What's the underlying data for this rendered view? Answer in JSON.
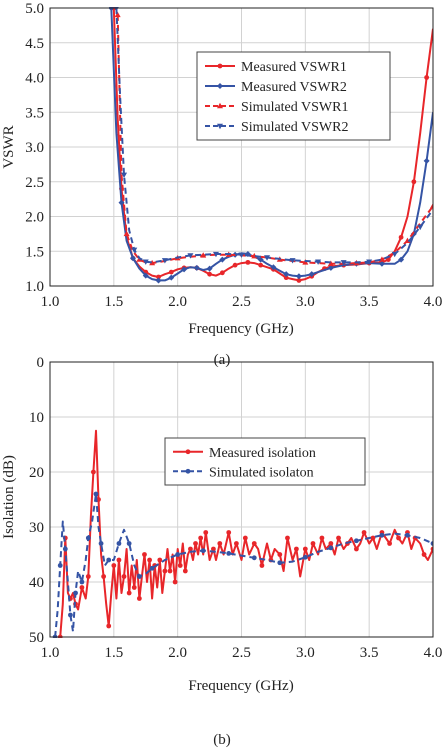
{
  "chart_data": [
    {
      "type": "line",
      "caption": "(a)",
      "xlabel": "Frequency (GHz)",
      "ylabel": "VSWR",
      "xlim": [
        1.0,
        4.0
      ],
      "ylim": [
        1.0,
        5.0
      ],
      "xticks": [
        "1.0",
        "1.5",
        "2.0",
        "2.5",
        "3.0",
        "3.5",
        "4.0"
      ],
      "yticks": [
        "1.0",
        "1.5",
        "2.0",
        "2.5",
        "3.0",
        "3.5",
        "4.0",
        "4.5",
        "5.0"
      ],
      "grid": true,
      "legend_position": "top-right",
      "series": [
        {
          "name": "Measured VSWR1",
          "color": "#e8262a",
          "dash": "solid",
          "marker": "circle",
          "x": [
            1.5,
            1.53,
            1.56,
            1.6,
            1.65,
            1.7,
            1.75,
            1.8,
            1.85,
            1.9,
            1.95,
            2.0,
            2.05,
            2.1,
            2.15,
            2.2,
            2.25,
            2.3,
            2.35,
            2.4,
            2.45,
            2.5,
            2.55,
            2.6,
            2.65,
            2.7,
            2.75,
            2.8,
            2.85,
            2.9,
            2.95,
            3.0,
            3.05,
            3.1,
            3.15,
            3.2,
            3.3,
            3.4,
            3.5,
            3.6,
            3.65,
            3.7,
            3.75,
            3.8,
            3.85,
            3.9,
            3.95,
            4.0
          ],
          "y": [
            5.0,
            3.4,
            2.4,
            1.7,
            1.4,
            1.28,
            1.2,
            1.15,
            1.13,
            1.17,
            1.2,
            1.24,
            1.26,
            1.27,
            1.26,
            1.22,
            1.17,
            1.15,
            1.19,
            1.25,
            1.3,
            1.33,
            1.34,
            1.33,
            1.3,
            1.27,
            1.24,
            1.18,
            1.12,
            1.1,
            1.08,
            1.1,
            1.14,
            1.2,
            1.25,
            1.28,
            1.3,
            1.31,
            1.33,
            1.34,
            1.38,
            1.5,
            1.7,
            2.0,
            2.5,
            3.2,
            4.0,
            4.7
          ]
        },
        {
          "name": "Measured VSWR2",
          "color": "#3554a5",
          "dash": "solid",
          "marker": "diamond",
          "x": [
            1.48,
            1.52,
            1.56,
            1.6,
            1.65,
            1.7,
            1.75,
            1.8,
            1.85,
            1.9,
            1.95,
            2.0,
            2.05,
            2.1,
            2.15,
            2.2,
            2.25,
            2.3,
            2.35,
            2.4,
            2.45,
            2.5,
            2.55,
            2.6,
            2.65,
            2.7,
            2.75,
            2.8,
            2.85,
            2.9,
            2.95,
            3.0,
            3.05,
            3.1,
            3.2,
            3.3,
            3.4,
            3.5,
            3.6,
            3.7,
            3.75,
            3.8,
            3.85,
            3.9,
            3.95,
            4.0
          ],
          "y": [
            5.0,
            3.2,
            2.2,
            1.65,
            1.4,
            1.25,
            1.15,
            1.1,
            1.08,
            1.08,
            1.12,
            1.18,
            1.24,
            1.27,
            1.26,
            1.23,
            1.25,
            1.32,
            1.38,
            1.42,
            1.45,
            1.47,
            1.46,
            1.42,
            1.38,
            1.32,
            1.27,
            1.22,
            1.17,
            1.15,
            1.14,
            1.15,
            1.17,
            1.2,
            1.26,
            1.3,
            1.32,
            1.33,
            1.32,
            1.32,
            1.38,
            1.5,
            1.75,
            2.2,
            2.8,
            3.5
          ]
        },
        {
          "name": "Simulated VSWR1",
          "color": "#e8262a",
          "dash": "dashed",
          "marker": "triangle-up",
          "x": [
            1.53,
            1.56,
            1.6,
            1.65,
            1.7,
            1.75,
            1.8,
            1.9,
            2.0,
            2.1,
            2.2,
            2.3,
            2.4,
            2.5,
            2.6,
            2.7,
            2.8,
            2.9,
            3.0,
            3.1,
            3.2,
            3.3,
            3.4,
            3.5,
            3.6,
            3.7,
            3.8,
            3.9,
            4.0
          ],
          "y": [
            4.9,
            2.6,
            1.75,
            1.5,
            1.38,
            1.34,
            1.33,
            1.36,
            1.4,
            1.42,
            1.44,
            1.45,
            1.45,
            1.44,
            1.43,
            1.41,
            1.38,
            1.36,
            1.34,
            1.33,
            1.32,
            1.32,
            1.33,
            1.34,
            1.38,
            1.48,
            1.65,
            1.9,
            2.15
          ]
        },
        {
          "name": "Simulated VSWR2",
          "color": "#3554a5",
          "dash": "dashed",
          "marker": "triangle-down",
          "x": [
            1.52,
            1.55,
            1.58,
            1.62,
            1.66,
            1.7,
            1.75,
            1.8,
            1.9,
            2.0,
            2.1,
            2.2,
            2.3,
            2.4,
            2.5,
            2.6,
            2.7,
            2.8,
            2.9,
            3.0,
            3.1,
            3.2,
            3.3,
            3.4,
            3.5,
            3.6,
            3.7,
            3.8,
            3.9,
            4.0
          ],
          "y": [
            5.0,
            3.7,
            2.6,
            1.8,
            1.52,
            1.4,
            1.35,
            1.34,
            1.37,
            1.41,
            1.44,
            1.45,
            1.46,
            1.46,
            1.45,
            1.43,
            1.41,
            1.39,
            1.37,
            1.36,
            1.35,
            1.34,
            1.34,
            1.34,
            1.35,
            1.38,
            1.46,
            1.62,
            1.85,
            2.1
          ]
        }
      ]
    },
    {
      "type": "line",
      "caption": "(b)",
      "xlabel": "Frequency (GHz)",
      "ylabel": "Isolation (dB)",
      "xlim": [
        1.0,
        4.0
      ],
      "ylim": [
        0,
        50
      ],
      "y_inverted": true,
      "xticks": [
        "1.0",
        "1.5",
        "2.0",
        "2.5",
        "3.0",
        "3.5",
        "4.0"
      ],
      "yticks": [
        "0",
        "10",
        "20",
        "30",
        "40",
        "50"
      ],
      "grid": true,
      "legend_position": "top-right",
      "series": [
        {
          "name": "Measured isolation",
          "color": "#e8262a",
          "dash": "solid",
          "marker": "circle",
          "x": [
            1.08,
            1.1,
            1.12,
            1.14,
            1.16,
            1.18,
            1.2,
            1.22,
            1.25,
            1.28,
            1.3,
            1.32,
            1.34,
            1.36,
            1.38,
            1.4,
            1.42,
            1.44,
            1.46,
            1.48,
            1.5,
            1.52,
            1.54,
            1.56,
            1.58,
            1.6,
            1.62,
            1.64,
            1.66,
            1.68,
            1.7,
            1.72,
            1.74,
            1.76,
            1.78,
            1.8,
            1.82,
            1.84,
            1.86,
            1.88,
            1.9,
            1.92,
            1.94,
            1.96,
            1.98,
            2.0,
            2.02,
            2.04,
            2.06,
            2.08,
            2.1,
            2.12,
            2.14,
            2.16,
            2.18,
            2.2,
            2.22,
            2.25,
            2.28,
            2.3,
            2.33,
            2.36,
            2.4,
            2.43,
            2.46,
            2.5,
            2.53,
            2.56,
            2.6,
            2.63,
            2.66,
            2.7,
            2.73,
            2.76,
            2.8,
            2.83,
            2.86,
            2.9,
            2.93,
            2.96,
            3.0,
            3.03,
            3.06,
            3.1,
            3.13,
            3.16,
            3.2,
            3.23,
            3.26,
            3.3,
            3.33,
            3.36,
            3.4,
            3.43,
            3.46,
            3.5,
            3.53,
            3.56,
            3.6,
            3.63,
            3.66,
            3.7,
            3.73,
            3.76,
            3.8,
            3.83,
            3.86,
            3.9,
            3.93,
            3.96,
            4.0
          ],
          "y": [
            50,
            44,
            32,
            42,
            43,
            42,
            44,
            45,
            41,
            43,
            39,
            28,
            20,
            12.5,
            25,
            35,
            39,
            44,
            48,
            42,
            37,
            43,
            36,
            42,
            39,
            34,
            42,
            37,
            41,
            36,
            43,
            39,
            35,
            40,
            36,
            43,
            37,
            41,
            36,
            42,
            38,
            34,
            38,
            35,
            40,
            34,
            37,
            33,
            38,
            35,
            34,
            36,
            33,
            35,
            32,
            35,
            31,
            36,
            34,
            36,
            33,
            35,
            31,
            35,
            33,
            36,
            32,
            35,
            33,
            34,
            37,
            33,
            36,
            34,
            35,
            38,
            32,
            36,
            34,
            39,
            34,
            36,
            33,
            35,
            32,
            34,
            33,
            35,
            32,
            34,
            33,
            32,
            34,
            33,
            31,
            33,
            32,
            34,
            31,
            32,
            33,
            30.5,
            32,
            33,
            31,
            34,
            32,
            33,
            35,
            36,
            34
          ]
        },
        {
          "name": "Simulated isolaton",
          "color": "#3554a5",
          "dash": "dashed",
          "marker": "circle",
          "x": [
            1.04,
            1.06,
            1.08,
            1.1,
            1.12,
            1.14,
            1.16,
            1.18,
            1.2,
            1.22,
            1.25,
            1.28,
            1.3,
            1.33,
            1.36,
            1.38,
            1.4,
            1.43,
            1.46,
            1.5,
            1.54,
            1.58,
            1.62,
            1.66,
            1.7,
            1.75,
            1.8,
            1.9,
            2.0,
            2.1,
            2.2,
            2.3,
            2.4,
            2.5,
            2.6,
            2.7,
            2.8,
            2.9,
            3.0,
            3.1,
            3.2,
            3.3,
            3.4,
            3.5,
            3.6,
            3.7,
            3.8,
            3.9,
            4.0
          ],
          "y": [
            50,
            45,
            37,
            29,
            34,
            40,
            46,
            49,
            42,
            38,
            40,
            36,
            32,
            29,
            24,
            30,
            33,
            37,
            36,
            36,
            33,
            30.5,
            33,
            37,
            39,
            38.5,
            37.5,
            36,
            35,
            34.5,
            34.3,
            34.5,
            34.8,
            35.2,
            35.6,
            36,
            36.5,
            36.3,
            35.5,
            34.5,
            33.8,
            33,
            32.5,
            32,
            31.5,
            31.2,
            31.5,
            32,
            33
          ]
        }
      ]
    }
  ]
}
